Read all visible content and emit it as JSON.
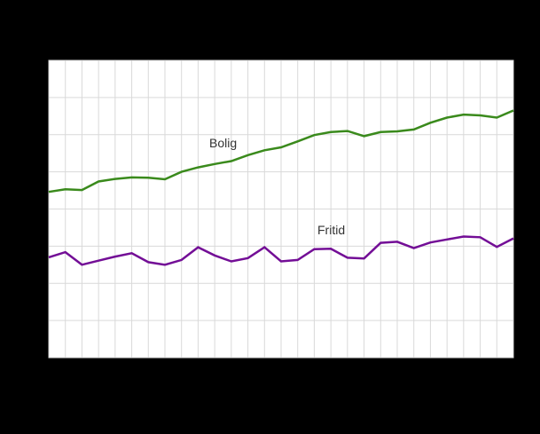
{
  "chart_data": {
    "type": "line",
    "title": "",
    "xlabel": "",
    "ylabel": "",
    "x_tick_labels_visible": false,
    "y_tick_labels_visible": false,
    "num_points": 29,
    "ylim": [
      60,
      140
    ],
    "y_gridline_step": 10,
    "grid": true,
    "legend_position": "inline-labels-on-plot",
    "series": [
      {
        "name": "Bolig",
        "color": "#3A8A1C",
        "values": [
          104.6,
          105.3,
          105.1,
          107.4,
          108.1,
          108.5,
          108.4,
          108.0,
          110.0,
          111.2,
          112.1,
          112.9,
          114.5,
          115.8,
          116.6,
          118.2,
          119.9,
          120.7,
          121.0,
          119.6,
          120.7,
          120.9,
          121.4,
          123.2,
          124.6,
          125.4,
          125.2,
          124.6,
          126.5
        ]
      },
      {
        "name": "Fritid",
        "color": "#730E96",
        "values": [
          87.0,
          88.4,
          85.0,
          86.1,
          87.2,
          88.1,
          85.7,
          85.0,
          86.3,
          89.7,
          87.5,
          85.9,
          86.8,
          89.7,
          85.9,
          86.3,
          89.2,
          89.3,
          86.9,
          86.7,
          90.9,
          91.2,
          89.5,
          91.0,
          91.8,
          92.6,
          92.4,
          89.8,
          92.1
        ]
      }
    ]
  },
  "colors": {
    "page_background": "#000000",
    "plot_background": "#FFFFFF",
    "gridline": "#D9D9D9",
    "label_text": "#333333"
  }
}
